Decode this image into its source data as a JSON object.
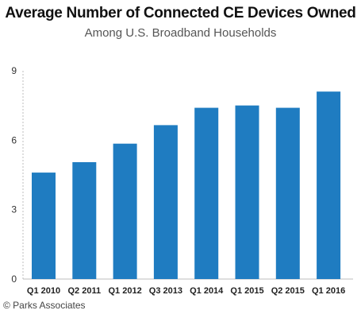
{
  "chart_data": {
    "type": "bar",
    "title": "Average Number of Connected CE Devices Owned",
    "subtitle": "Among U.S. Broadband Households",
    "categories": [
      "Q1 2010",
      "Q2 2011",
      "Q1 2012",
      "Q3 2013",
      "Q1 2014",
      "Q1 2015",
      "Q2 2015",
      "Q1 2016"
    ],
    "values": [
      4.6,
      5.05,
      5.85,
      6.65,
      7.4,
      7.5,
      7.4,
      8.1
    ],
    "ylim": [
      0,
      9
    ],
    "yticks": [
      0,
      3,
      6,
      9
    ],
    "grid": false,
    "legend": "none",
    "bar_color": "#1f7cc1"
  },
  "source": "© Parks Associates"
}
